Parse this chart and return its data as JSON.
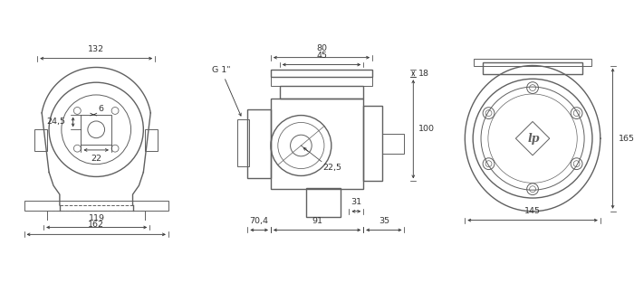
{
  "bg_color": "#ffffff",
  "line_color": "#606060",
  "dim_color": "#333333",
  "fig_width": 7.0,
  "fig_height": 3.23,
  "front_dims": {
    "w132": "132",
    "w119": "119",
    "w162": "162",
    "d6": "6",
    "d24_5": "24,5",
    "d22": "22"
  },
  "side_dims": {
    "d70_4": "70,4",
    "d91": "91",
    "d35": "35",
    "d31": "31",
    "d22_5": "22,5",
    "d100": "100",
    "d18": "18",
    "d45": "45",
    "d80": "80",
    "port": "G 1\""
  },
  "rear_dims": {
    "w145": "145",
    "h165": "165"
  }
}
